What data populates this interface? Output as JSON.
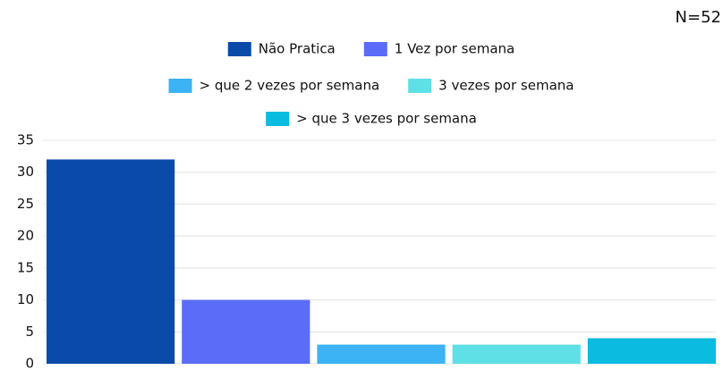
{
  "chart_data": {
    "type": "bar",
    "annotation": "N=52",
    "categories": [
      null
    ],
    "series": [
      {
        "name": "Não Pratica",
        "color": "#0a4aa8",
        "values": [
          32
        ]
      },
      {
        "name": "1 Vez por semana",
        "color": "#5a6cf8",
        "values": [
          10
        ]
      },
      {
        "name": "> que 2 vezes por semana",
        "color": "#3bb3f4",
        "values": [
          3
        ]
      },
      {
        "name": "3 vezes por semana",
        "color": "#5ee0e6",
        "values": [
          3
        ]
      },
      {
        "name": "> que 3 vezes por semana",
        "color": "#0bbbe0",
        "values": [
          4
        ]
      }
    ],
    "ylim": [
      0,
      35
    ],
    "yticks": [
      0,
      5,
      10,
      15,
      20,
      25,
      30,
      35
    ],
    "grid": true,
    "legend": "top"
  }
}
